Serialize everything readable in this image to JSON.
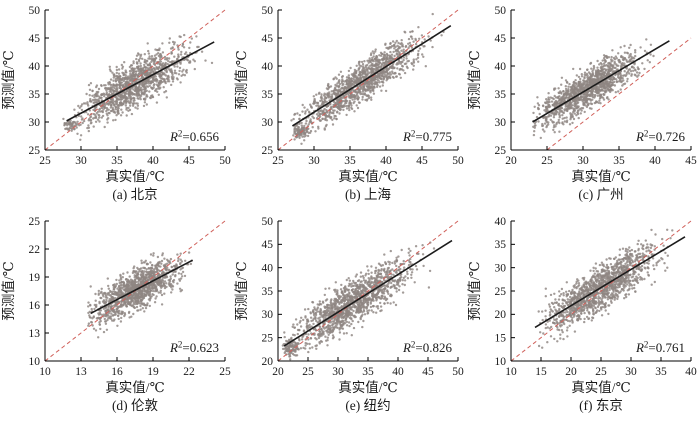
{
  "page": {
    "background": "#ffffff"
  },
  "colors": {
    "scatter": "#8f8682",
    "identity_line": "#d0605a",
    "fit_line": "#1c1c1c",
    "axis": "#000000",
    "text": "#1a1a1a"
  },
  "chart_data": [
    {
      "type": "scatter",
      "name": "subplot-a-beijing",
      "title": "(a) 北京",
      "xlabel": "真实值/℃",
      "ylabel": "预测值/℃",
      "xlim": [
        25,
        50
      ],
      "ylim": [
        25,
        50
      ],
      "xticks": [
        25,
        30,
        35,
        40,
        45,
        50
      ],
      "yticks": [
        25,
        30,
        35,
        40,
        45,
        50
      ],
      "r2": "0.656",
      "identity_line": true,
      "fit_line": {
        "x1": 28.0,
        "y1": 30.2,
        "x2": 48.5,
        "y2": 44.3
      },
      "clusters": [
        {
          "n": 1250,
          "x_center": 37.5,
          "x_sd": 3.6,
          "x_min": 27.5,
          "x_max": 48.5,
          "y_sd": 2.0
        },
        {
          "n": 45,
          "x_center": 28.6,
          "x_sd": 0.5,
          "x_min": 27.6,
          "x_max": 30.0,
          "y_center": 29.6,
          "y_sd": 0.45
        }
      ],
      "seed": 11
    },
    {
      "type": "scatter",
      "name": "subplot-b-shanghai",
      "title": "(b) 上海",
      "xlabel": "真实值/℃",
      "ylabel": "预测值/℃",
      "xlim": [
        25,
        50
      ],
      "ylim": [
        25,
        50
      ],
      "xticks": [
        25,
        30,
        35,
        40,
        45,
        50
      ],
      "yticks": [
        25,
        30,
        35,
        40,
        45,
        50
      ],
      "r2": "0.775",
      "identity_line": true,
      "fit_line": {
        "x1": 27.0,
        "y1": 29.3,
        "x2": 49.0,
        "y2": 47.2
      },
      "clusters": [
        {
          "n": 1250,
          "x_center": 36.5,
          "x_sd": 3.9,
          "x_min": 26.8,
          "x_max": 49.2,
          "y_sd": 1.7
        },
        {
          "n": 85,
          "x_center": 28.0,
          "x_sd": 0.55,
          "x_min": 26.9,
          "x_max": 29.5,
          "y_center": 28.2,
          "y_sd": 0.55
        }
      ],
      "seed": 22
    },
    {
      "type": "scatter",
      "name": "subplot-c-guangzhou",
      "title": "(c) 广州",
      "xlabel": "真实值/℃",
      "ylabel": "预测值/℃",
      "xlim": [
        20,
        45
      ],
      "ylim": [
        25,
        50
      ],
      "xticks": [
        20,
        25,
        30,
        35,
        40,
        45
      ],
      "yticks": [
        25,
        30,
        35,
        40,
        45,
        50
      ],
      "r2": "0.726",
      "identity_line": true,
      "fit_line": {
        "x1": 23.0,
        "y1": 30.0,
        "x2": 42.0,
        "y2": 44.5
      },
      "clusters": [
        {
          "n": 1250,
          "x_center": 30.5,
          "x_sd": 3.3,
          "x_min": 23.0,
          "x_max": 42.0,
          "y_sd": 1.7
        }
      ],
      "seed": 33
    },
    {
      "type": "scatter",
      "name": "subplot-d-london",
      "title": "(d) 伦敦",
      "xlabel": "真实值/℃",
      "ylabel": "预测值/℃",
      "xlim": [
        10,
        25
      ],
      "ylim": [
        10,
        25
      ],
      "xticks": [
        10,
        13,
        16,
        19,
        22,
        25
      ],
      "yticks": [
        10,
        13,
        16,
        19,
        22,
        25
      ],
      "r2": "0.623",
      "identity_line": true,
      "fit_line": {
        "x1": 13.8,
        "y1": 15.1,
        "x2": 22.3,
        "y2": 20.8
      },
      "clusters": [
        {
          "n": 1250,
          "x_center": 17.6,
          "x_sd": 1.75,
          "x_min": 13.6,
          "x_max": 22.4,
          "y_sd": 1.05
        }
      ],
      "seed": 44
    },
    {
      "type": "scatter",
      "name": "subplot-e-newyork",
      "title": "(e) 纽约",
      "xlabel": "真实值/℃",
      "ylabel": "预测值/℃",
      "xlim": [
        20,
        50
      ],
      "ylim": [
        20,
        50
      ],
      "xticks": [
        20,
        25,
        30,
        35,
        40,
        45,
        50
      ],
      "yticks": [
        20,
        25,
        30,
        35,
        40,
        45,
        50
      ],
      "r2": "0.826",
      "identity_line": true,
      "fit_line": {
        "x1": 21.0,
        "y1": 23.2,
        "x2": 49.0,
        "y2": 45.8
      },
      "clusters": [
        {
          "n": 1300,
          "x_center": 32.5,
          "x_sd": 4.6,
          "x_min": 20.8,
          "x_max": 49.0,
          "y_sd": 2.3
        },
        {
          "n": 90,
          "x_center": 22.0,
          "x_sd": 0.8,
          "x_min": 20.8,
          "x_max": 24.0,
          "y_center": 22.8,
          "y_sd": 0.8
        }
      ],
      "seed": 55
    },
    {
      "type": "scatter",
      "name": "subplot-f-tokyo",
      "title": "(f) 东京",
      "xlabel": "真实值/℃",
      "ylabel": "预测值/℃",
      "xlim": [
        10,
        40
      ],
      "ylim": [
        10,
        40
      ],
      "xticks": [
        10,
        15,
        20,
        25,
        30,
        35,
        40
      ],
      "yticks": [
        10,
        15,
        20,
        25,
        30,
        35,
        40
      ],
      "r2": "0.761",
      "identity_line": true,
      "fit_line": {
        "x1": 14.0,
        "y1": 17.2,
        "x2": 39.0,
        "y2": 36.6
      },
      "clusters": [
        {
          "n": 1300,
          "x_center": 25.0,
          "x_sd": 4.3,
          "x_min": 14.5,
          "x_max": 39.0,
          "y_sd": 2.3
        }
      ],
      "seed": 66
    }
  ]
}
